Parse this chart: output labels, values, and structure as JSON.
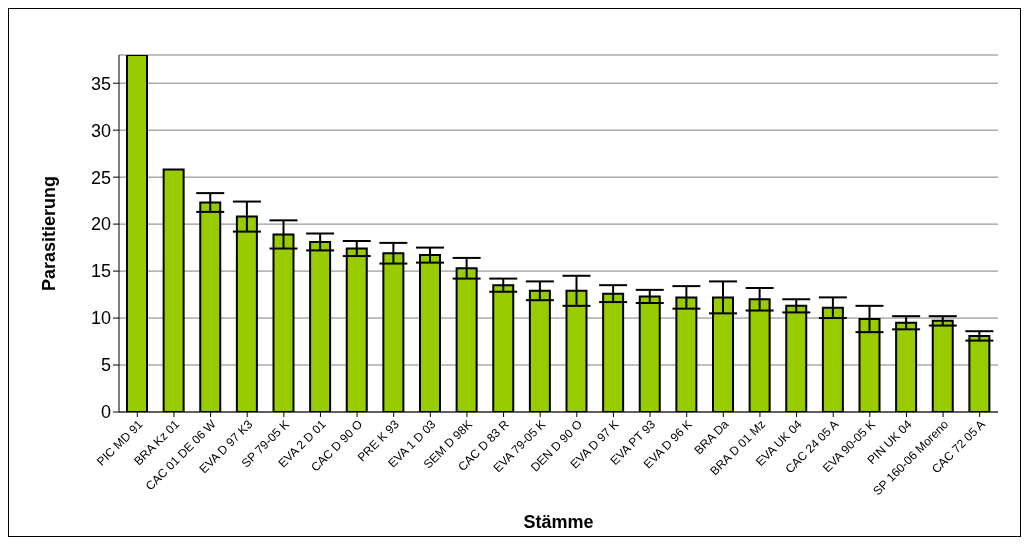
{
  "chart_data": {
    "type": "bar",
    "xlabel": "Stämme",
    "ylabel": "Parasitierung",
    "categories": [
      "PIC MD 91",
      "BRA Kz 01",
      "CAC 01 DE 06 W",
      "EVA D 97 K3",
      "SP 79-05 K",
      "EVA 2 D 01",
      "CAC D 90 O",
      "PRE K 93",
      "EVA 1 D 03",
      "SEM D 98K",
      "CAC D 83 R",
      "EVA 79-05 K",
      "DEN D 90 O",
      "EVA D 97 K",
      "EVA PT 93",
      "EVA D 96 K",
      "BRA Da",
      "BRA D 01 Mz",
      "EVA UK 04",
      "CAC 24 05 A",
      "EVA 90-05 K",
      "PIN UK 04",
      "SP 160-06 Moreno",
      "CAC 72 05 A"
    ],
    "values": [
      38,
      25.8,
      22.3,
      20.8,
      18.9,
      18.1,
      17.4,
      16.9,
      16.7,
      15.3,
      13.5,
      12.9,
      12.9,
      12.6,
      12.3,
      12.2,
      12.2,
      12.0,
      11.3,
      11.1,
      9.9,
      9.5,
      9.7,
      8.1
    ],
    "errors": [
      null,
      null,
      1.0,
      1.6,
      1.5,
      0.9,
      0.8,
      1.1,
      0.8,
      1.1,
      0.7,
      1.0,
      1.6,
      0.9,
      0.7,
      1.2,
      1.7,
      1.2,
      0.7,
      1.1,
      1.4,
      0.7,
      0.5,
      0.5
    ],
    "color": "#99cc00",
    "ylim": [
      0,
      38
    ],
    "yticks": [
      0,
      5,
      10,
      15,
      20,
      25,
      30,
      35
    ],
    "grid": "y"
  }
}
